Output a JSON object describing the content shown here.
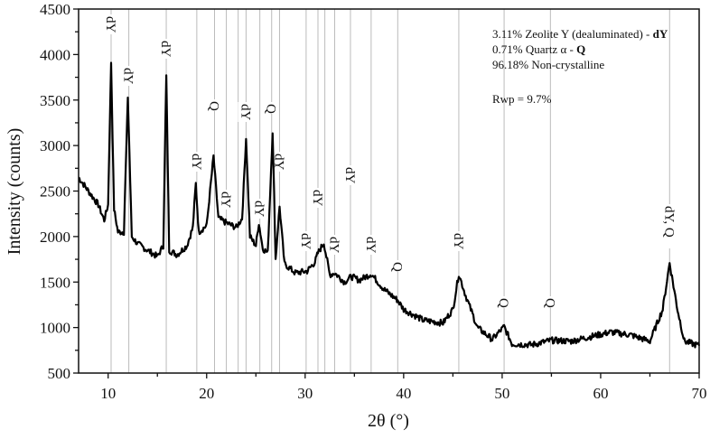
{
  "chart_data": {
    "type": "line",
    "title": "",
    "xlabel": "2θ (°)",
    "ylabel": "Intensity (counts)",
    "xlim": [
      7,
      70
    ],
    "ylim": [
      500,
      4500
    ],
    "x_ticks": [
      10,
      20,
      30,
      40,
      50,
      60,
      70
    ],
    "y_ticks": [
      500,
      1000,
      1500,
      2000,
      2500,
      3000,
      3500,
      4000,
      4500
    ],
    "grid": false,
    "series": [
      {
        "name": "XRD pattern",
        "x": [
          7,
          8,
          9,
          9.6,
          10.0,
          10.3,
          10.6,
          11.0,
          11.6,
          12.0,
          12.4,
          13,
          14,
          15,
          15.6,
          15.9,
          16.2,
          17,
          18,
          18.6,
          18.9,
          19.2,
          20.0,
          20.7,
          21.2,
          22.0,
          23.0,
          23.6,
          24.0,
          24.4,
          25.0,
          25.3,
          25.7,
          26.2,
          26.7,
          27.0,
          27.4,
          27.9,
          29,
          30.2,
          31.0,
          31.3,
          31.9,
          32.5,
          33.0,
          34.0,
          34.7,
          35.5,
          36.7,
          38,
          39.4,
          40,
          42,
          44,
          45.0,
          45.6,
          46.3,
          47.5,
          49,
          50.2,
          51,
          53,
          55,
          57,
          59,
          61,
          63,
          65,
          66.3,
          67.0,
          67.8,
          68.5,
          70
        ],
        "y": [
          2650,
          2500,
          2350,
          2180,
          2350,
          3920,
          2300,
          2050,
          2050,
          3540,
          2000,
          1920,
          1850,
          1780,
          1900,
          3760,
          1850,
          1800,
          1900,
          2100,
          2580,
          2050,
          2120,
          2880,
          2200,
          2150,
          2100,
          2200,
          3080,
          2000,
          1900,
          2150,
          1870,
          1820,
          3160,
          1750,
          2330,
          1700,
          1600,
          1620,
          1720,
          1820,
          1930,
          1580,
          1600,
          1500,
          1560,
          1520,
          1590,
          1420,
          1300,
          1200,
          1080,
          1050,
          1200,
          1590,
          1350,
          1000,
          870,
          1010,
          820,
          810,
          860,
          850,
          900,
          950,
          920,
          850,
          1200,
          1710,
          1200,
          850,
          800
        ]
      }
    ],
    "reference_lines_2theta": [
      10.3,
      12.1,
      15.9,
      19.0,
      20.8,
      22.0,
      23.2,
      24.0,
      25.4,
      26.6,
      27.4,
      30.1,
      31.3,
      32.0,
      33.0,
      34.6,
      36.7,
      39.4,
      45.6,
      50.2,
      54.9,
      67.0
    ],
    "peak_labels": [
      {
        "x": 10.3,
        "label": "dY"
      },
      {
        "x": 12.1,
        "label": "dY"
      },
      {
        "x": 15.9,
        "label": "dY"
      },
      {
        "x": 19.0,
        "label": "dY"
      },
      {
        "x": 20.8,
        "label": "Q"
      },
      {
        "x": 22.0,
        "label": "dY"
      },
      {
        "x": 24.0,
        "label": "dY"
      },
      {
        "x": 25.4,
        "label": "dY"
      },
      {
        "x": 26.6,
        "label": "Q"
      },
      {
        "x": 27.4,
        "label": "dY"
      },
      {
        "x": 30.1,
        "label": "dY"
      },
      {
        "x": 31.3,
        "label": "dY"
      },
      {
        "x": 33.0,
        "label": "dY"
      },
      {
        "x": 34.6,
        "label": "dY"
      },
      {
        "x": 36.7,
        "label": "dY"
      },
      {
        "x": 39.4,
        "label": "Q"
      },
      {
        "x": 45.6,
        "label": "dY"
      },
      {
        "x": 50.2,
        "label": "Q"
      },
      {
        "x": 54.9,
        "label": "Q"
      },
      {
        "x": 67.0,
        "label": "dY, Q"
      }
    ],
    "annotations": [
      "3.11% Zeolite Y (dealuminated) - dY",
      "0.71% Quartz α - Q",
      "96.18% Non-crystalline",
      "Rwp = 9.7%"
    ],
    "legend_position": "top-right (inside)"
  },
  "axes": {
    "xlabel": "2θ (°)",
    "ylabel": "Intensity (counts)",
    "x_tick_labels": [
      "10",
      "20",
      "30",
      "40",
      "50",
      "60",
      "70"
    ],
    "y_tick_labels": [
      "500",
      "1000",
      "1500",
      "2000",
      "2500",
      "3000",
      "3500",
      "4000",
      "4500"
    ]
  },
  "legend": {
    "line1_prefix": "3.11% Zeolite Y (dealuminated) - ",
    "line1_bold": "dY",
    "line2_prefix": "0.71% Quartz α - ",
    "line2_bold": "Q",
    "line3": "96.18% Non-crystalline",
    "line4": "Rwp = 9.7%"
  },
  "colors": {
    "trace": "#000000",
    "reference_line": "#bbbbbb",
    "axis": "#111111"
  }
}
